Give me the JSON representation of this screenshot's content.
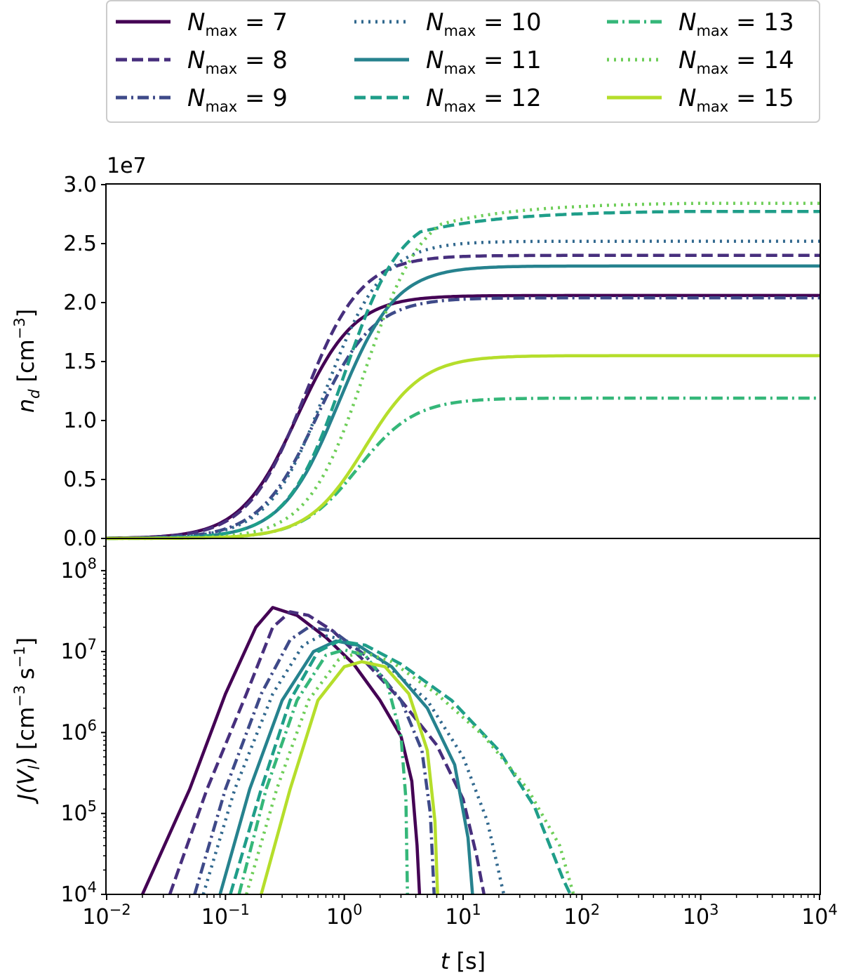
{
  "chart_data": [
    {
      "type": "line",
      "panel": "top",
      "xscale": "log",
      "xlim": [
        0.01,
        10000
      ],
      "ylim": [
        0,
        30000000
      ],
      "ylabel": {
        "var": "n",
        "sub": "d",
        "unit": "[cm",
        "exp": "−3",
        "close": "]"
      },
      "offset_text": "1e7",
      "yticks": [
        {
          "v": 0.0,
          "label": "0.0"
        },
        {
          "v": 5000000,
          "label": "0.5"
        },
        {
          "v": 10000000,
          "label": "1.0"
        },
        {
          "v": 15000000,
          "label": "1.5"
        },
        {
          "v": 20000000,
          "label": "2.0"
        },
        {
          "v": 25000000,
          "label": "2.5"
        },
        {
          "v": 30000000,
          "label": "3.0"
        }
      ],
      "series": [
        {
          "name": "N_max = 7",
          "plateau": 20600000,
          "t_half": 0.4,
          "t_plateau": 3.5
        },
        {
          "name": "N_max = 8",
          "plateau": 24000000,
          "t_half": 0.46,
          "t_plateau": 4.0
        },
        {
          "name": "N_max = 9",
          "plateau": 20400000,
          "t_half": 0.58,
          "t_plateau": 4.0
        },
        {
          "name": "N_max = 10",
          "plateau": 25200000,
          "t_half": 0.7,
          "t_plateau": 7.0
        },
        {
          "name": "N_max = 11",
          "plateau": 23100000,
          "t_half": 0.9,
          "t_plateau": 7.0
        },
        {
          "name": "N_max = 12",
          "plateau": 27800000,
          "t_half": 1.0,
          "t_plateau": 700
        },
        {
          "name": "N_max = 13",
          "plateau": 11900000,
          "t_half": 1.3,
          "t_plateau": 3.5
        },
        {
          "name": "N_max = 14",
          "plateau": 28500000,
          "t_half": 1.5,
          "t_plateau": 1000
        },
        {
          "name": "N_max = 15",
          "plateau": 15500000,
          "t_half": 1.5,
          "t_plateau": 5.5
        }
      ]
    },
    {
      "type": "line",
      "panel": "bottom",
      "xscale": "log",
      "yscale": "log",
      "xlim": [
        0.01,
        10000
      ],
      "ylim": [
        10000,
        250000000
      ],
      "xlabel": {
        "var": "t",
        "unit": "[s]"
      },
      "ylabel": {
        "var": "J(V",
        "sub": "l",
        "close": ")",
        "unit": "[cm",
        "exp1": "−3",
        "mid": "s",
        "exp2": "−1",
        "end": "]"
      },
      "yticks": [
        {
          "v": 10000,
          "base": "10",
          "exp": "4"
        },
        {
          "v": 100000,
          "base": "10",
          "exp": "5"
        },
        {
          "v": 1000000,
          "base": "10",
          "exp": "6"
        },
        {
          "v": 10000000,
          "base": "10",
          "exp": "7"
        },
        {
          "v": 100000000,
          "base": "10",
          "exp": "8"
        }
      ],
      "xticks": [
        {
          "v": 0.01,
          "base": "10",
          "exp": "−2"
        },
        {
          "v": 0.1,
          "base": "10",
          "exp": "−1"
        },
        {
          "v": 1,
          "base": "10",
          "exp": "0"
        },
        {
          "v": 10,
          "base": "10",
          "exp": "1"
        },
        {
          "v": 100,
          "base": "10",
          "exp": "2"
        },
        {
          "v": 1000,
          "base": "10",
          "exp": "3"
        },
        {
          "v": 10000,
          "base": "10",
          "exp": "4"
        }
      ],
      "series": [
        {
          "name": "N_max = 7",
          "points": [
            [
              0.02,
              10000
            ],
            [
              0.05,
              200000
            ],
            [
              0.1,
              3000000
            ],
            [
              0.18,
              20000000
            ],
            [
              0.25,
              35000000
            ],
            [
              0.4,
              28000000
            ],
            [
              0.7,
              15000000
            ],
            [
              1.2,
              7000000
            ],
            [
              2.0,
              2500000
            ],
            [
              3.0,
              900000
            ],
            [
              3.7,
              250000
            ],
            [
              4.1,
              40000
            ],
            [
              4.3,
              10000
            ]
          ]
        },
        {
          "name": "N_max = 8",
          "points": [
            [
              0.034,
              10000
            ],
            [
              0.07,
              200000
            ],
            [
              0.15,
              3000000
            ],
            [
              0.25,
              20000000
            ],
            [
              0.35,
              31000000
            ],
            [
              0.5,
              28000000
            ],
            [
              0.8,
              18000000
            ],
            [
              1.5,
              7500000
            ],
            [
              3,
              2500000
            ],
            [
              6,
              700000
            ],
            [
              10,
              150000
            ],
            [
              13,
              30000
            ],
            [
              15,
              10000
            ]
          ]
        },
        {
          "name": "N_max = 9",
          "points": [
            [
              0.055,
              10000
            ],
            [
              0.1,
              200000
            ],
            [
              0.2,
              3000000
            ],
            [
              0.35,
              14000000
            ],
            [
              0.5,
              20000000
            ],
            [
              0.8,
              18000000
            ],
            [
              1.5,
              9000000
            ],
            [
              3,
              2500000
            ],
            [
              4.5,
              600000
            ],
            [
              5.3,
              100000
            ],
            [
              5.7,
              10000
            ]
          ]
        },
        {
          "name": "N_max = 10",
          "points": [
            [
              0.065,
              10000
            ],
            [
              0.12,
              200000
            ],
            [
              0.25,
              3000000
            ],
            [
              0.45,
              12000000
            ],
            [
              0.65,
              16000000
            ],
            [
              1.0,
              14000000
            ],
            [
              2,
              8000000
            ],
            [
              5,
              2500000
            ],
            [
              10,
              500000
            ],
            [
              16,
              80000
            ],
            [
              22,
              10000
            ]
          ]
        },
        {
          "name": "N_max = 11",
          "points": [
            [
              0.09,
              10000
            ],
            [
              0.16,
              200000
            ],
            [
              0.3,
              2500000
            ],
            [
              0.55,
              10000000
            ],
            [
              0.85,
              13500000
            ],
            [
              1.3,
              12000000
            ],
            [
              2.5,
              6500000
            ],
            [
              5,
              2000000
            ],
            [
              8.5,
              400000
            ],
            [
              11,
              50000
            ],
            [
              12,
              10000
            ]
          ]
        },
        {
          "name": "N_max = 12",
          "points": [
            [
              0.11,
              10000
            ],
            [
              0.2,
              200000
            ],
            [
              0.35,
              2500000
            ],
            [
              0.6,
              10000000
            ],
            [
              0.9,
              13500000
            ],
            [
              1.5,
              12000000
            ],
            [
              3,
              7000000
            ],
            [
              8,
              2500000
            ],
            [
              20,
              600000
            ],
            [
              40,
              120000
            ],
            [
              70,
              15000
            ],
            [
              80,
              10000
            ]
          ]
        },
        {
          "name": "N_max = 13",
          "points": [
            [
              0.13,
              10000
            ],
            [
              0.22,
              200000
            ],
            [
              0.4,
              2500000
            ],
            [
              0.7,
              9000000
            ],
            [
              1.0,
              10500000
            ],
            [
              1.5,
              9000000
            ],
            [
              2.3,
              4000000
            ],
            [
              3.0,
              900000
            ],
            [
              3.3,
              150000
            ],
            [
              3.4,
              10000
            ]
          ]
        },
        {
          "name": "N_max = 14",
          "points": [
            [
              0.15,
              10000
            ],
            [
              0.27,
              200000
            ],
            [
              0.5,
              2500000
            ],
            [
              0.9,
              8000000
            ],
            [
              1.4,
              10000000
            ],
            [
              2.5,
              7500000
            ],
            [
              6,
              3000000
            ],
            [
              15,
              900000
            ],
            [
              35,
              200000
            ],
            [
              65,
              40000
            ],
            [
              85,
              10000
            ]
          ]
        },
        {
          "name": "N_max = 15",
          "points": [
            [
              0.2,
              10000
            ],
            [
              0.35,
              200000
            ],
            [
              0.6,
              2500000
            ],
            [
              1.0,
              6500000
            ],
            [
              1.4,
              7500000
            ],
            [
              2.2,
              6500000
            ],
            [
              3.5,
              3000000
            ],
            [
              5,
              600000
            ],
            [
              5.8,
              80000
            ],
            [
              6.1,
              10000
            ]
          ]
        }
      ]
    }
  ],
  "legend": {
    "position": "top-center",
    "items": [
      {
        "base": "N",
        "sub": "max",
        "rest": " = 7",
        "color": "#440154",
        "dash": "solid"
      },
      {
        "base": "N",
        "sub": "max",
        "rest": " = 8",
        "color": "#472d7b",
        "dash": "dashed"
      },
      {
        "base": "N",
        "sub": "max",
        "rest": " = 9",
        "color": "#3b528b",
        "dash": "dashdot"
      },
      {
        "base": "N",
        "sub": "max",
        "rest": " = 10",
        "color": "#2c728e",
        "dash": "dotted"
      },
      {
        "base": "N",
        "sub": "max",
        "rest": " = 11",
        "color": "#21918c",
        "dash": "solid"
      },
      {
        "base": "N",
        "sub": "max",
        "rest": " = 12",
        "color": "#28ae80",
        "dash": "dashed"
      },
      {
        "base": "N",
        "sub": "max",
        "rest": " = 13",
        "color": "#5ec962",
        "dash": "dashdot"
      },
      {
        "base": "N",
        "sub": "max",
        "rest": " = 14",
        "color": "#addc30",
        "dash": "dotted"
      },
      {
        "base": "N",
        "sub": "max",
        "rest": " = 15",
        "color": "#fde725",
        "dash": "solid"
      }
    ]
  },
  "colors": {
    "palette": [
      "#440154",
      "#472f7d",
      "#3e4a89",
      "#31688e",
      "#26828e",
      "#1f9e89",
      "#35b779",
      "#6ece58",
      "#b5de2b"
    ]
  }
}
